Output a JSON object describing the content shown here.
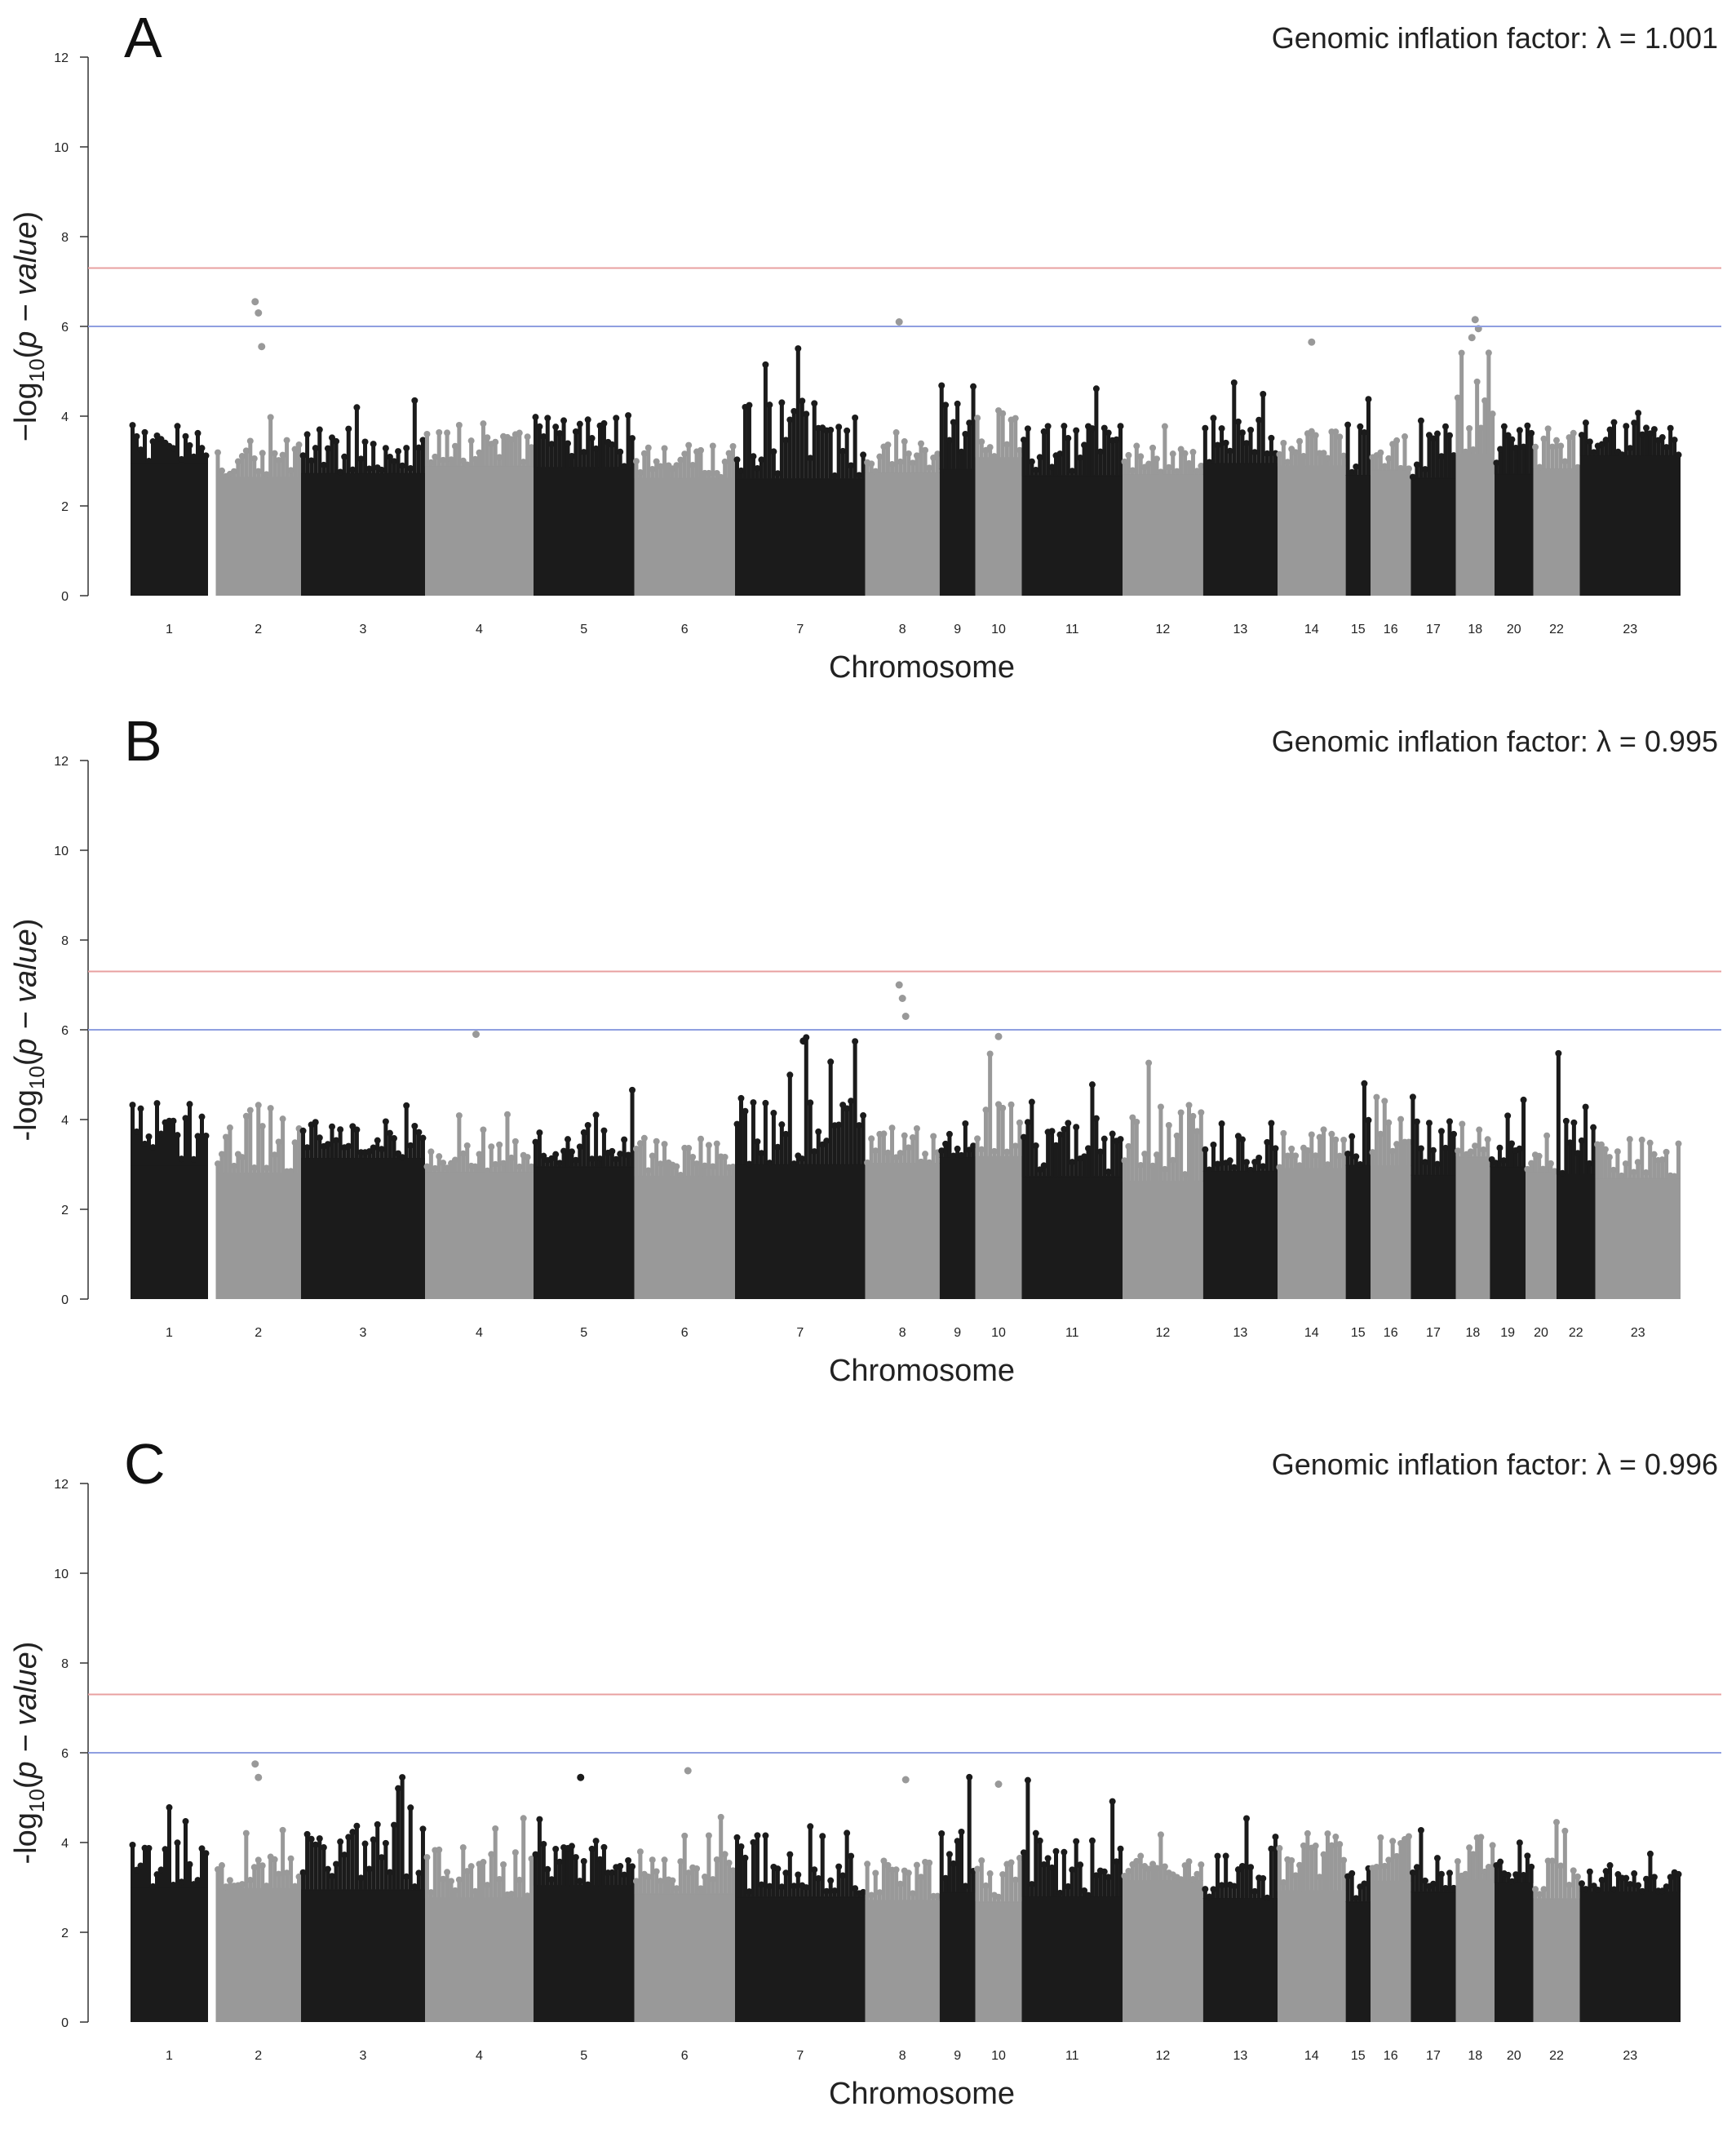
{
  "chart_data": [
    {
      "type": "scatter",
      "panel_letter": "A",
      "annotation": "Genomic inflation factor: λ = 1.001",
      "xlabel": "Chromosome",
      "ylabel_parts": [
        "−log",
        "10",
        "(",
        "p − value",
        ")"
      ],
      "ylim": [
        0,
        12
      ],
      "yticks": [
        "0",
        "2",
        "4",
        "6",
        "8",
        "10",
        "12"
      ],
      "threshold_lines": [
        {
          "y": 7.3,
          "color": "#e8a0a0"
        },
        {
          "y": 6.0,
          "color": "#8f9fe0"
        }
      ],
      "chromosomes": [
        "1",
        "2",
        "3",
        "4",
        "5",
        "6",
        "7",
        "8",
        "9",
        "10",
        "11",
        "12",
        "13",
        "14",
        "15",
        "16",
        "17",
        "18",
        "20",
        "22",
        "23"
      ],
      "segment_max": [
        4.5,
        4.0,
        4.6,
        4.3,
        5.0,
        4.0,
        5.8,
        4.3,
        5.6,
        4.9,
        4.7,
        4.0,
        5.0,
        4.3,
        4.6,
        4.8,
        5.0,
        5.6,
        4.7,
        4.4,
        4.5,
        3.9,
        4.6,
        4.0,
        5.0,
        4.5,
        3.8,
        5.0
      ],
      "top_hits": [
        {
          "chr": "2",
          "y": 6.55
        },
        {
          "chr": "2",
          "y": 6.3
        },
        {
          "chr": "2",
          "y": 5.55
        },
        {
          "chr": "8",
          "y": 6.1
        },
        {
          "chr": "18",
          "y": 6.15
        },
        {
          "chr": "18",
          "y": 5.95
        },
        {
          "chr": "18",
          "y": 5.75
        },
        {
          "chr": "14",
          "y": 5.65
        }
      ],
      "colors": {
        "dark": "#1b1b1b",
        "light": "#999999"
      }
    },
    {
      "type": "scatter",
      "panel_letter": "B",
      "annotation": "Genomic inflation factor: λ = 0.995",
      "xlabel": "Chromosome",
      "ylabel_parts": [
        "-log",
        "10",
        "(",
        "p − value",
        ")"
      ],
      "ylim": [
        0,
        12
      ],
      "yticks": [
        "0",
        "2",
        "4",
        "6",
        "8",
        "10",
        "12"
      ],
      "threshold_lines": [
        {
          "y": 7.3,
          "color": "#e8a0a0"
        },
        {
          "y": 6.0,
          "color": "#8f9fe0"
        }
      ],
      "chromosomes": [
        "1",
        "2",
        "3",
        "4",
        "5",
        "6",
        "7",
        "8",
        "9",
        "10",
        "11",
        "12",
        "13",
        "14",
        "15",
        "16",
        "17",
        "18",
        "19",
        "20",
        "22",
        "23"
      ],
      "segment_max": [
        5.5,
        5.6,
        4.5,
        4.2,
        4.7,
        4.3,
        5.9,
        4.5,
        4.1,
        5.7,
        5.0,
        5.7,
        4.8,
        4.5,
        5.5,
        5.1,
        5.0,
        4.5,
        4.7,
        4.5,
        5.6,
        4.3,
        4.0,
        4.3,
        4.9,
        4.4,
        4.3,
        5.0
      ],
      "top_hits": [
        {
          "chr": "8",
          "y": 7.0
        },
        {
          "chr": "8",
          "y": 6.7
        },
        {
          "chr": "8",
          "y": 6.3
        },
        {
          "chr": "4",
          "y": 5.9
        },
        {
          "chr": "10",
          "y": 5.85
        },
        {
          "chr": "7",
          "y": 5.75
        }
      ],
      "colors": {
        "dark": "#1b1b1b",
        "light": "#999999"
      }
    },
    {
      "type": "scatter",
      "panel_letter": "C",
      "annotation": "Genomic inflation factor: λ = 0.996",
      "xlabel": "Chromosome",
      "ylabel_parts": [
        "-log",
        "10",
        "(",
        "p − value",
        ")"
      ],
      "ylim": [
        0,
        12
      ],
      "yticks": [
        "0",
        "2",
        "4",
        "6",
        "8",
        "10",
        "12"
      ],
      "threshold_lines": [
        {
          "y": 7.3,
          "color": "#e8a0a0"
        },
        {
          "y": 6.0,
          "color": "#8f9fe0"
        }
      ],
      "chromosomes": [
        "1",
        "2",
        "3",
        "4",
        "5",
        "6",
        "7",
        "8",
        "9",
        "10",
        "11",
        "12",
        "13",
        "14",
        "15",
        "16",
        "17",
        "18",
        "20",
        "22",
        "23"
      ],
      "segment_max": [
        4.8,
        4.4,
        5.8,
        4.8,
        4.9,
        4.6,
        5.5,
        4.4,
        5.6,
        4.6,
        5.4,
        4.3,
        4.6,
        5.3,
        4.0,
        5.2,
        4.3,
        4.9,
        4.2,
        4.6,
        3.8,
        3.8,
        4.6,
        5.1,
        4.7,
        3.8,
        4.0,
        3.8
      ],
      "top_hits": [
        {
          "chr": "2",
          "y": 5.75
        },
        {
          "chr": "2",
          "y": 5.45
        },
        {
          "chr": "6",
          "y": 5.6
        },
        {
          "chr": "5",
          "y": 5.45
        },
        {
          "chr": "10",
          "y": 5.3
        },
        {
          "chr": "8",
          "y": 5.4
        }
      ],
      "colors": {
        "dark": "#1b1b1b",
        "light": "#999999"
      }
    }
  ]
}
